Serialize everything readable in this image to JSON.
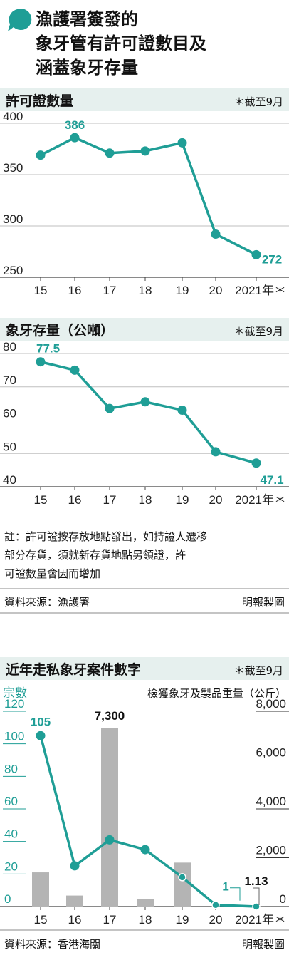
{
  "colors": {
    "accent": "#1f9e96",
    "band": "#e6f0ee",
    "bar": "#b4b4b4",
    "grid": "#bfbfbf"
  },
  "header": {
    "icon": "speech-bubble-icon",
    "title_lines": [
      "漁護署簽發的",
      "象牙管有許可證數目及",
      "涵蓋象牙存量"
    ]
  },
  "note_lines": [
    "註：許可證按存放地點發出，如持證人遷移",
    "部分存貨，須就新存貨地點另領證，許",
    "可證數量會因而增加"
  ],
  "source1": {
    "left": "資料來源：漁護署",
    "right": "明報製圖"
  },
  "source2": {
    "left": "資料來源：香港海關",
    "right": "明報製圖"
  },
  "chart_data": [
    {
      "type": "line",
      "title": "許可證數量",
      "footnote": "＊截至9月",
      "x": [
        "15",
        "16",
        "17",
        "18",
        "19",
        "20",
        "2021年＊"
      ],
      "values": [
        369,
        386,
        371,
        373,
        381,
        292,
        272
      ],
      "yticks": [
        "400",
        "350",
        "300",
        "250"
      ],
      "ylim": [
        250,
        400
      ],
      "labels": [
        {
          "index": 1,
          "text": "386"
        },
        {
          "index": 6,
          "text": "272"
        }
      ]
    },
    {
      "type": "line",
      "title": "象牙存量（公噸）",
      "footnote": "＊截至9月",
      "x": [
        "15",
        "16",
        "17",
        "18",
        "19",
        "20",
        "2021年＊"
      ],
      "values": [
        77.5,
        75,
        63.5,
        65.5,
        63,
        50.5,
        47.1
      ],
      "yticks": [
        "80",
        "70",
        "60",
        "50",
        "40"
      ],
      "ylim": [
        40,
        80
      ],
      "labels": [
        {
          "index": 0,
          "text": "77.5"
        },
        {
          "index": 6,
          "text": "47.1"
        }
      ]
    },
    {
      "type": "bar+line",
      "title": "近年走私象牙案件數字",
      "footnote": "＊截至9月",
      "x": [
        "15",
        "16",
        "17",
        "18",
        "19",
        "20",
        "2021年＊"
      ],
      "line_series": {
        "name": "宗數",
        "values": [
          105,
          25,
          41,
          35,
          18,
          1,
          0
        ],
        "ylim": [
          0,
          120
        ]
      },
      "bar_series": {
        "name": "檢獲象牙及製品重量（公斤）",
        "values": [
          1400,
          450,
          7300,
          300,
          1800,
          0,
          1.13
        ],
        "ylim": [
          0,
          8000
        ]
      },
      "left_yticks": [
        "120",
        "100",
        "80",
        "60",
        "40",
        "20",
        "0"
      ],
      "right_yticks": [
        "8,000",
        "6,000",
        "4,000",
        "2,000",
        "0"
      ],
      "labels": [
        {
          "series": "line",
          "index": 0,
          "text": "105"
        },
        {
          "series": "bar",
          "index": 2,
          "text": "7,300"
        },
        {
          "series": "line",
          "index": 5,
          "text": "1"
        },
        {
          "series": "bar",
          "index": 6,
          "text": "1.13"
        }
      ]
    }
  ]
}
